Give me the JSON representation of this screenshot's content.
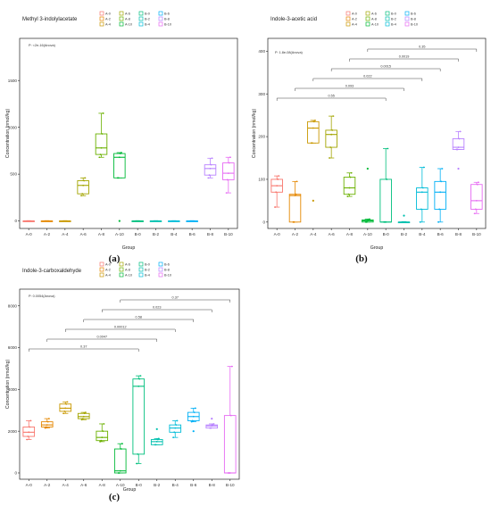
{
  "panels_meta": {
    "x_axis_label": "Group"
  },
  "chart_data": [
    {
      "panel": "(a)",
      "type": "box",
      "title": "Methyl 3-indolylacetate",
      "stat_text": "P: <2e-16(Anova)",
      "xlabel": "Group",
      "ylabel": "Concentration (nmol/kg)",
      "ylim": [
        -80,
        1950
      ],
      "yticks": [
        0,
        500,
        1000,
        1500
      ],
      "grid": false,
      "legend": "top-right",
      "categories": [
        "A-0",
        "A-2",
        "A-4",
        "A-6",
        "A-8",
        "A-10",
        "B-0",
        "B-2",
        "B-4",
        "B-6",
        "B-8",
        "B-10"
      ],
      "colors": [
        "#f8766d",
        "#e58700",
        "#c99800",
        "#a3a500",
        "#6bb100",
        "#00ba38",
        "#00bf7d",
        "#00c0af",
        "#00bcd8",
        "#00b0f6",
        "#b983ff",
        "#e76bf3"
      ],
      "boxes": [
        {
          "group": "A-0",
          "min": 0,
          "q1": 0,
          "median": 0,
          "q3": 0,
          "max": 0,
          "outliers": []
        },
        {
          "group": "A-2",
          "min": 0,
          "q1": 0,
          "median": 0,
          "q3": 0,
          "max": 0,
          "outliers": []
        },
        {
          "group": "A-4",
          "min": 0,
          "q1": 0,
          "median": 0,
          "q3": 0,
          "max": 0,
          "outliers": []
        },
        {
          "group": "A-6",
          "min": 270,
          "q1": 290,
          "median": 380,
          "q3": 430,
          "max": 460,
          "outliers": []
        },
        {
          "group": "A-8",
          "min": 680,
          "q1": 710,
          "median": 780,
          "q3": 930,
          "max": 1150,
          "outliers": []
        },
        {
          "group": "A-10",
          "min": 460,
          "q1": 460,
          "median": 680,
          "q3": 720,
          "max": 730,
          "outliers": [
            0
          ]
        },
        {
          "group": "B-0",
          "min": 0,
          "q1": 0,
          "median": 0,
          "q3": 0,
          "max": 0,
          "outliers": []
        },
        {
          "group": "B-2",
          "min": 0,
          "q1": 0,
          "median": 0,
          "q3": 0,
          "max": 0,
          "outliers": []
        },
        {
          "group": "B-4",
          "min": 0,
          "q1": 0,
          "median": 0,
          "q3": 0,
          "max": 0,
          "outliers": []
        },
        {
          "group": "B-6",
          "min": 0,
          "q1": 0,
          "median": 0,
          "q3": 0,
          "max": 0,
          "outliers": []
        },
        {
          "group": "B-8",
          "min": 460,
          "q1": 490,
          "median": 560,
          "q3": 600,
          "max": 670,
          "outliers": []
        },
        {
          "group": "B-10",
          "min": 300,
          "q1": 440,
          "median": 510,
          "q3": 620,
          "max": 680,
          "outliers": []
        }
      ],
      "comparisons": []
    },
    {
      "panel": "(b)",
      "type": "box",
      "title": "Indole-3-acetic acid",
      "stat_text": "P: 1.8e-08(Anova)",
      "xlabel": "Group",
      "ylabel": "Concentration (nmol/kg)",
      "ylim": [
        -15,
        430
      ],
      "yticks": [
        0,
        100,
        200,
        300,
        400
      ],
      "grid": false,
      "legend": "top-right",
      "categories": [
        "A-0",
        "A-2",
        "A-4",
        "A-6",
        "A-8",
        "A-10",
        "B-0",
        "B-2",
        "B-4",
        "B-6",
        "B-8",
        "B-10"
      ],
      "colors": [
        "#f8766d",
        "#e58700",
        "#c99800",
        "#a3a500",
        "#6bb100",
        "#00ba38",
        "#00bf7d",
        "#00c0af",
        "#00bcd8",
        "#00b0f6",
        "#b983ff",
        "#e76bf3"
      ],
      "boxes": [
        {
          "group": "A-0",
          "min": 35,
          "q1": 70,
          "median": 85,
          "q3": 100,
          "max": 108,
          "outliers": []
        },
        {
          "group": "A-2",
          "min": 0,
          "q1": 0,
          "median": 62,
          "q3": 65,
          "max": 95,
          "outliers": []
        },
        {
          "group": "A-4",
          "min": 185,
          "q1": 185,
          "median": 220,
          "q3": 235,
          "max": 238,
          "outliers": [
            50
          ]
        },
        {
          "group": "A-6",
          "min": 150,
          "q1": 175,
          "median": 205,
          "q3": 215,
          "max": 248,
          "outliers": []
        },
        {
          "group": "A-8",
          "min": 60,
          "q1": 65,
          "median": 80,
          "q3": 105,
          "max": 115,
          "outliers": []
        },
        {
          "group": "A-10",
          "min": 0,
          "q1": 0,
          "median": 3,
          "q3": 5,
          "max": 7,
          "outliers": [
            125
          ]
        },
        {
          "group": "B-0",
          "min": 0,
          "q1": 0,
          "median": 0,
          "q3": 100,
          "max": 172,
          "outliers": []
        },
        {
          "group": "B-2",
          "min": 0,
          "q1": 0,
          "median": 0,
          "q3": 0,
          "max": 0,
          "outliers": [
            15
          ]
        },
        {
          "group": "B-4",
          "min": 0,
          "q1": 30,
          "median": 70,
          "q3": 80,
          "max": 128,
          "outliers": []
        },
        {
          "group": "B-6",
          "min": 0,
          "q1": 30,
          "median": 70,
          "q3": 95,
          "max": 125,
          "outliers": []
        },
        {
          "group": "B-8",
          "min": 170,
          "q1": 170,
          "median": 175,
          "q3": 195,
          "max": 212,
          "outliers": [
            125
          ]
        },
        {
          "group": "B-10",
          "min": 20,
          "q1": 30,
          "median": 50,
          "q3": 88,
          "max": 93,
          "outliers": []
        }
      ],
      "comparisons": [
        {
          "from": "A-0",
          "to": "B-0",
          "label": "0.55"
        },
        {
          "from": "A-2",
          "to": "B-2",
          "label": "0.093"
        },
        {
          "from": "A-4",
          "to": "B-4",
          "label": "0.022"
        },
        {
          "from": "A-6",
          "to": "B-6",
          "label": "0.0015"
        },
        {
          "from": "A-8",
          "to": "B-8",
          "label": "0.0019"
        },
        {
          "from": "A-10",
          "to": "B-10",
          "label": "0.35"
        }
      ]
    },
    {
      "panel": "(c)",
      "type": "box",
      "title": "Indole-3-carboxaldehyde",
      "stat_text": "P: 0.0054(Anova)",
      "xlabel": "Group",
      "ylabel": "Concentration (nmol/kg)",
      "ylim": [
        -300,
        8800
      ],
      "yticks": [
        0,
        2000,
        4000,
        6000,
        8000
      ],
      "grid": false,
      "legend": "top-right",
      "categories": [
        "A-0",
        "A-2",
        "A-4",
        "A-6",
        "A-8",
        "A-10",
        "B-0",
        "B-2",
        "B-4",
        "B-6",
        "B-8",
        "B-10"
      ],
      "colors": [
        "#f8766d",
        "#e58700",
        "#c99800",
        "#a3a500",
        "#6bb100",
        "#00ba38",
        "#00bf7d",
        "#00c0af",
        "#00bcd8",
        "#00b0f6",
        "#b983ff",
        "#e76bf3"
      ],
      "boxes": [
        {
          "group": "A-0",
          "min": 1600,
          "q1": 1750,
          "median": 1950,
          "q3": 2200,
          "max": 2500,
          "outliers": []
        },
        {
          "group": "A-2",
          "min": 2150,
          "q1": 2200,
          "median": 2300,
          "q3": 2450,
          "max": 2600,
          "outliers": []
        },
        {
          "group": "A-4",
          "min": 2850,
          "q1": 2950,
          "median": 3100,
          "q3": 3300,
          "max": 3400,
          "outliers": []
        },
        {
          "group": "A-6",
          "min": 2550,
          "q1": 2600,
          "median": 2700,
          "q3": 2850,
          "max": 2900,
          "outliers": []
        },
        {
          "group": "A-8",
          "min": 1500,
          "q1": 1550,
          "median": 1700,
          "q3": 2000,
          "max": 2350,
          "outliers": []
        },
        {
          "group": "A-10",
          "min": 0,
          "q1": 0,
          "median": 100,
          "q3": 1150,
          "max": 1400,
          "outliers": []
        },
        {
          "group": "B-0",
          "min": 450,
          "q1": 900,
          "median": 4150,
          "q3": 4500,
          "max": 4650,
          "outliers": []
        },
        {
          "group": "B-2",
          "min": 1350,
          "q1": 1350,
          "median": 1500,
          "q3": 1600,
          "max": 1650,
          "outliers": [
            2100
          ]
        },
        {
          "group": "B-4",
          "min": 1700,
          "q1": 1950,
          "median": 2150,
          "q3": 2300,
          "max": 2500,
          "outliers": []
        },
        {
          "group": "B-6",
          "min": 2450,
          "q1": 2500,
          "median": 2700,
          "q3": 2900,
          "max": 3100,
          "outliers": [
            2000
          ]
        },
        {
          "group": "B-8",
          "min": 2150,
          "q1": 2150,
          "median": 2250,
          "q3": 2300,
          "max": 2350,
          "outliers": [
            2600
          ]
        },
        {
          "group": "B-10",
          "min": 0,
          "q1": 0,
          "median": 0,
          "q3": 2750,
          "max": 5100,
          "outliers": []
        }
      ],
      "comparisons": [
        {
          "from": "A-0",
          "to": "B-0",
          "label": "0.37"
        },
        {
          "from": "A-2",
          "to": "B-2",
          "label": "0.0047"
        },
        {
          "from": "A-4",
          "to": "B-4",
          "label": "0.00012"
        },
        {
          "from": "A-6",
          "to": "B-6",
          "label": "0.58"
        },
        {
          "from": "A-8",
          "to": "B-8",
          "label": "0.023"
        },
        {
          "from": "A-10",
          "to": "B-10",
          "label": "0.37"
        }
      ]
    }
  ]
}
